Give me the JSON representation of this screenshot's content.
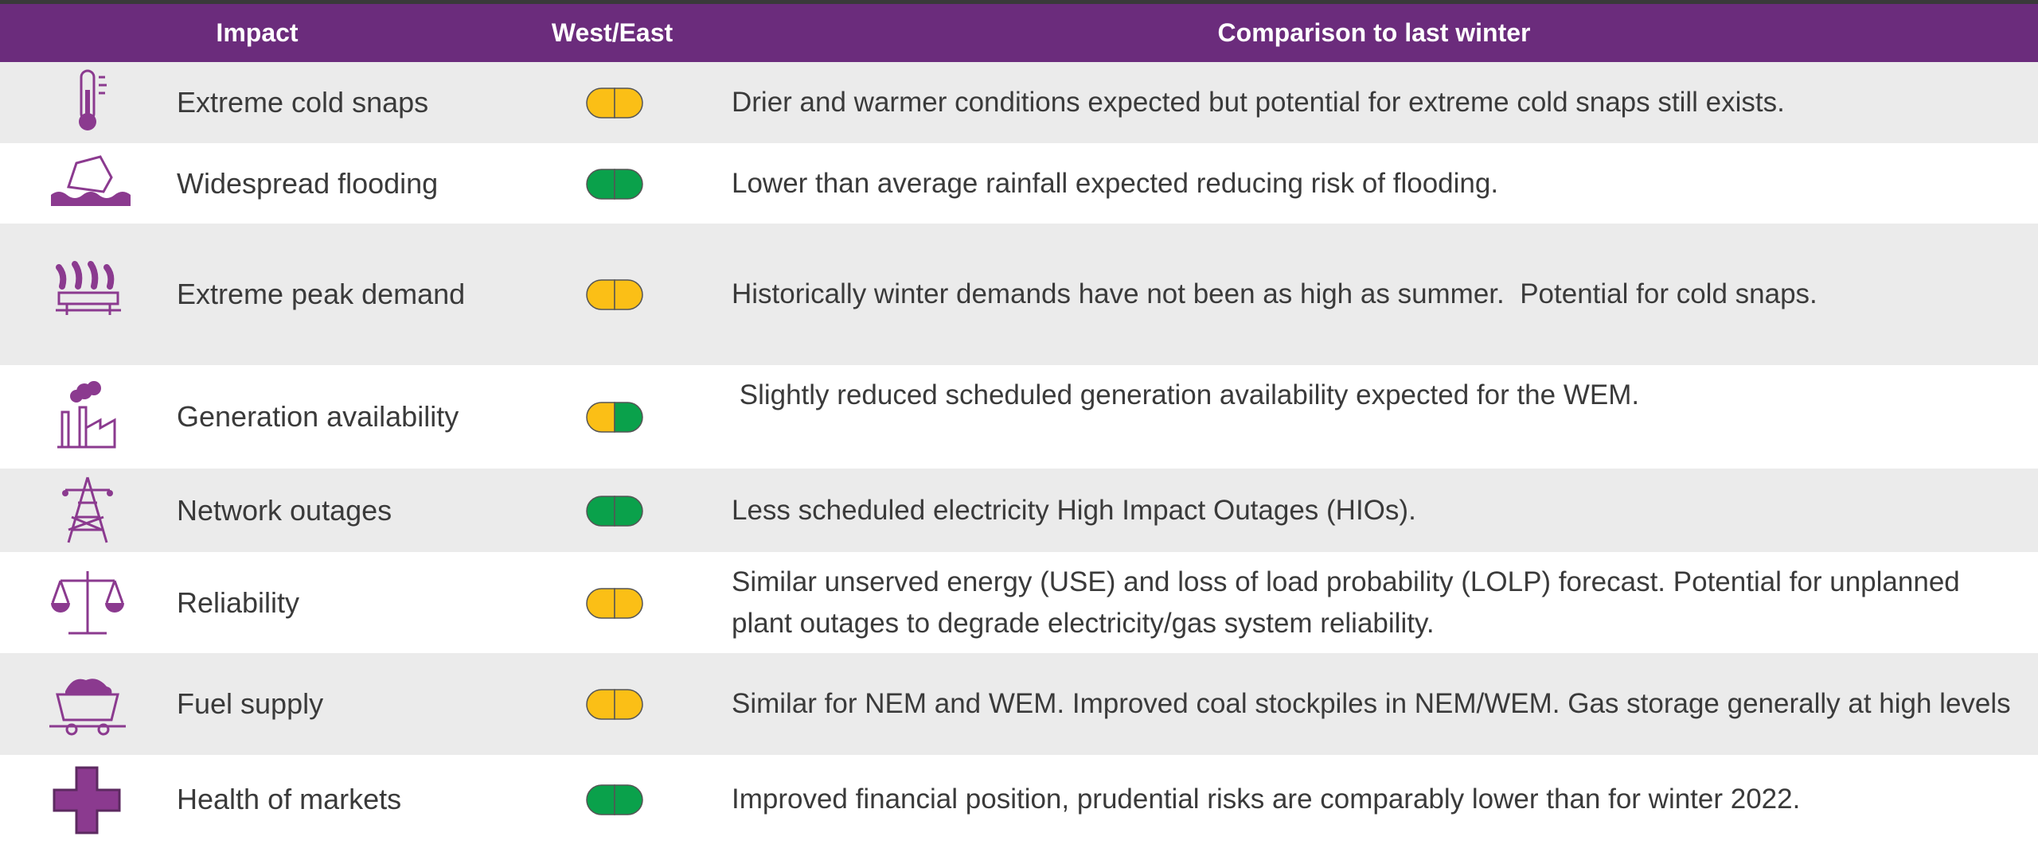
{
  "table": {
    "header": [
      "Impact",
      "West/East",
      "Comparison to last winter"
    ],
    "rows": [
      {
        "impact": "Extreme cold snaps",
        "west": "#fbbf16",
        "east": "#fbbf16",
        "comparison": "Drier and warmer conditions expected but potential for extreme cold snaps still exists."
      },
      {
        "impact": "Widespread flooding",
        "west": "#0aa14b",
        "east": "#0aa14b",
        "comparison": "Lower than average rainfall expected reducing risk of flooding."
      },
      {
        "impact": "Extreme peak demand",
        "west": "#fbbf16",
        "east": "#fbbf16",
        "comparison": "Historically winter demands have not been as high as summer.  Potential for cold snaps."
      },
      {
        "impact": "Generation availability",
        "west": "#fbbf16",
        "east": "#0aa14b",
        "comparison": " Slightly reduced scheduled generation availability expected for the WEM."
      },
      {
        "impact": "Network outages",
        "west": "#0aa14b",
        "east": "#0aa14b",
        "comparison": "Less scheduled electricity High Impact Outages (HIOs)."
      },
      {
        "impact": "Reliability",
        "west": "#fbbf16",
        "east": "#fbbf16",
        "comparison": "Similar unserved energy (USE) and loss of load probability (LOLP) forecast. Potential for unplanned plant outages to degrade electricity/gas system reliability."
      },
      {
        "impact": "Fuel supply",
        "west": "#fbbf16",
        "east": "#fbbf16",
        "comparison": "Similar for NEM and WEM. Improved coal stockpiles in NEM/WEM. Gas storage generally at high levels"
      },
      {
        "impact": "Health of markets",
        "west": "#0aa14b",
        "east": "#0aa14b",
        "comparison": "Improved financial position, prudential risks are comparably lower than for winter 2022."
      }
    ]
  }
}
